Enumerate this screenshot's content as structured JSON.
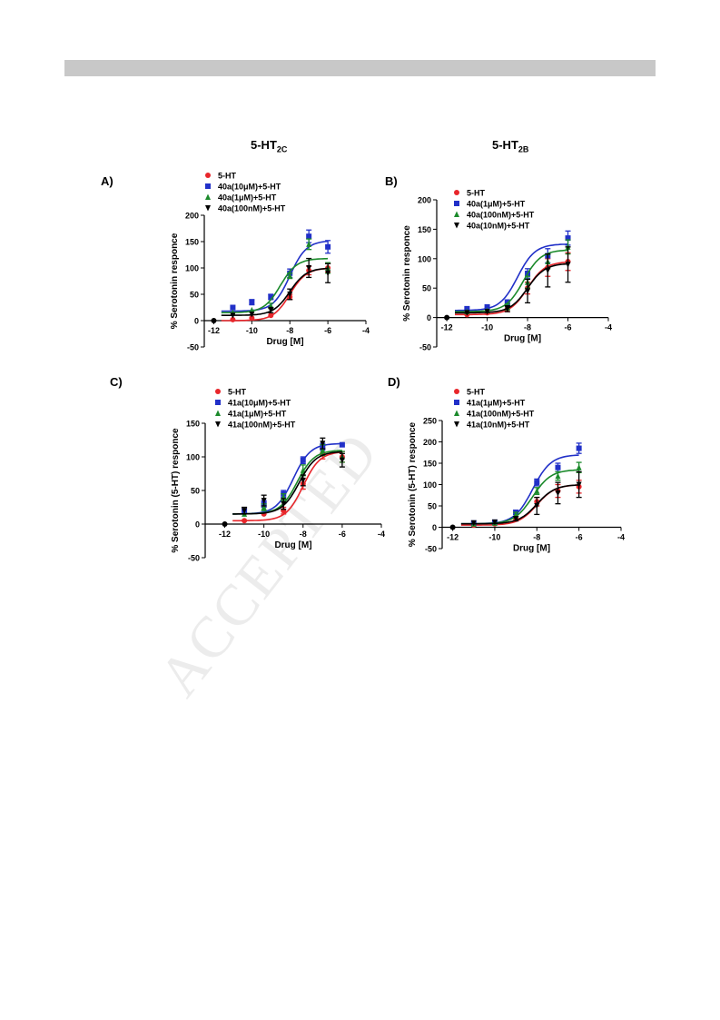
{
  "header": {
    "col_left": {
      "main": "5-HT",
      "sub": "2C"
    },
    "col_right": {
      "main": "5-HT",
      "sub": "2B"
    }
  },
  "watermark": "ACCEPTED",
  "colors": {
    "red": "#e8262b",
    "blue": "#2130c8",
    "green": "#1b8a2b",
    "black": "#000000"
  },
  "chart_data": [
    {
      "type": "scatter",
      "letter": "A)",
      "xlabel": "Drug [M]",
      "ylabel": "% Serotonin responce",
      "xlim": [
        -12.5,
        -4
      ],
      "ylim": [
        -50,
        200
      ],
      "xticks": [
        -12,
        -10,
        -8,
        -6,
        -4
      ],
      "yticks": [
        -50,
        0,
        50,
        100,
        150,
        200
      ],
      "x": [
        -11,
        -10,
        -9,
        -8,
        -7,
        -6
      ],
      "series": [
        {
          "name": "5-HT",
          "marker": "circle",
          "color": "red",
          "y": [
            2,
            5,
            10,
            45,
            95,
            100
          ],
          "err": [
            0,
            0,
            0,
            5,
            8,
            8
          ],
          "fit": {
            "bottom": 0,
            "top": 100,
            "logec50": -8.0
          }
        },
        {
          "name": "40a(10μM)+5-HT",
          "marker": "square",
          "color": "blue",
          "y": [
            25,
            35,
            45,
            90,
            160,
            140
          ],
          "err": [
            0,
            5,
            5,
            8,
            12,
            12
          ],
          "fit": {
            "bottom": 18,
            "top": 152,
            "logec50": -8.0
          }
        },
        {
          "name": "40a(1μM)+5-HT",
          "marker": "triangle-up",
          "color": "green",
          "y": [
            15,
            20,
            28,
            85,
            145,
            100
          ],
          "err": [
            0,
            0,
            5,
            5,
            10,
            10
          ],
          "fit": {
            "bottom": 15,
            "top": 118,
            "logec50": -8.5
          }
        },
        {
          "name": "40a(100nM)+5-HT",
          "marker": "triangle-down",
          "color": "black",
          "y": [
            10,
            12,
            20,
            50,
            100,
            90
          ],
          "err": [
            0,
            0,
            5,
            10,
            18,
            18
          ],
          "fit": {
            "bottom": 10,
            "top": 100,
            "logec50": -8.0
          }
        }
      ],
      "first_point": {
        "x": -12,
        "y": 0
      }
    },
    {
      "type": "scatter",
      "letter": "B)",
      "xlabel": "Drug [M]",
      "ylabel": "% Serotonin responce",
      "xlim": [
        -12.5,
        -4
      ],
      "ylim": [
        -50,
        200
      ],
      "xticks": [
        -12,
        -10,
        -8,
        -6,
        -4
      ],
      "yticks": [
        -50,
        0,
        50,
        100,
        150,
        200
      ],
      "x": [
        -11,
        -10,
        -9,
        -8,
        -7,
        -6
      ],
      "series": [
        {
          "name": "5-HT",
          "marker": "circle",
          "color": "red",
          "y": [
            5,
            8,
            15,
            50,
            85,
            95
          ],
          "err": [
            0,
            0,
            5,
            10,
            15,
            15
          ],
          "fit": {
            "bottom": 5,
            "top": 95,
            "logec50": -8.0
          }
        },
        {
          "name": "40a(1μM)+5-HT",
          "marker": "square",
          "color": "blue",
          "y": [
            15,
            18,
            25,
            75,
            105,
            135
          ],
          "err": [
            0,
            0,
            5,
            8,
            12,
            12
          ],
          "fit": {
            "bottom": 12,
            "top": 125,
            "logec50": -8.5
          }
        },
        {
          "name": "40a(100nM)+5-HT",
          "marker": "triangle-up",
          "color": "green",
          "y": [
            10,
            12,
            18,
            60,
            95,
            120
          ],
          "err": [
            0,
            0,
            5,
            10,
            12,
            12
          ],
          "fit": {
            "bottom": 10,
            "top": 115,
            "logec50": -8.2
          }
        },
        {
          "name": "40a(10nM)+5-HT",
          "marker": "triangle-down",
          "color": "black",
          "y": [
            8,
            10,
            15,
            45,
            80,
            90
          ],
          "err": [
            0,
            0,
            5,
            20,
            28,
            30
          ],
          "fit": {
            "bottom": 8,
            "top": 92,
            "logec50": -8.0
          }
        }
      ],
      "first_point": {
        "x": -12,
        "y": 0
      }
    },
    {
      "type": "scatter",
      "letter": "C)",
      "xlabel": "Drug [M]",
      "ylabel": "% Serotonin (5-HT) responce",
      "xlim": [
        -13,
        -4
      ],
      "ylim": [
        -50,
        150
      ],
      "xticks": [
        -12,
        -10,
        -8,
        -6,
        -4
      ],
      "yticks": [
        -50,
        0,
        50,
        100,
        150
      ],
      "x": [
        -11,
        -10,
        -9,
        -8,
        -7,
        -6
      ],
      "series": [
        {
          "name": "5-HT",
          "marker": "circle",
          "color": "red",
          "y": [
            5,
            15,
            20,
            60,
            105,
            100
          ],
          "err": [
            0,
            0,
            5,
            8,
            8,
            8
          ],
          "fit": {
            "bottom": 5,
            "top": 108,
            "logec50": -8.0
          }
        },
        {
          "name": "41a(10μM)+5-HT",
          "marker": "square",
          "color": "blue",
          "y": [
            20,
            30,
            45,
            95,
            115,
            118
          ],
          "err": [
            0,
            5,
            5,
            5,
            5,
            0
          ],
          "fit": {
            "bottom": 15,
            "top": 120,
            "logec50": -8.5
          }
        },
        {
          "name": "41a(1μM)+5-HT",
          "marker": "triangle-up",
          "color": "green",
          "y": [
            15,
            25,
            40,
            80,
            110,
            100
          ],
          "err": [
            0,
            5,
            5,
            8,
            8,
            8
          ],
          "fit": {
            "bottom": 15,
            "top": 110,
            "logec50": -8.3
          }
        },
        {
          "name": "41a(100nM)+5-HT",
          "marker": "triangle-down",
          "color": "black",
          "y": [
            20,
            35,
            30,
            65,
            120,
            95
          ],
          "err": [
            5,
            8,
            8,
            8,
            8,
            10
          ],
          "fit": {
            "bottom": 15,
            "top": 108,
            "logec50": -8.2
          }
        }
      ],
      "first_point": {
        "x": -12,
        "y": 0
      }
    },
    {
      "type": "scatter",
      "letter": "D)",
      "xlabel": "Drug [M]",
      "ylabel": "% Serotonin (5-HT) responce",
      "xlim": [
        -12.5,
        -4
      ],
      "ylim": [
        -50,
        250
      ],
      "xticks": [
        -12,
        -10,
        -8,
        -6,
        -4
      ],
      "yticks": [
        -50,
        0,
        50,
        100,
        150,
        200,
        250
      ],
      "x": [
        -11,
        -10,
        -9,
        -8,
        -7,
        -6
      ],
      "series": [
        {
          "name": "5-HT",
          "marker": "circle",
          "color": "red",
          "y": [
            5,
            8,
            20,
            60,
            85,
            95
          ],
          "err": [
            0,
            0,
            5,
            10,
            15,
            15
          ],
          "fit": {
            "bottom": 5,
            "top": 100,
            "logec50": -8.0
          }
        },
        {
          "name": "41a(1μM)+5-HT",
          "marker": "square",
          "color": "blue",
          "y": [
            10,
            12,
            35,
            105,
            140,
            185
          ],
          "err": [
            0,
            0,
            5,
            8,
            10,
            12
          ],
          "fit": {
            "bottom": 8,
            "top": 170,
            "logec50": -8.2
          }
        },
        {
          "name": "41a(100nM)+5-HT",
          "marker": "triangle-up",
          "color": "green",
          "y": [
            8,
            10,
            30,
            85,
            120,
            140
          ],
          "err": [
            0,
            0,
            5,
            8,
            10,
            12
          ],
          "fit": {
            "bottom": 8,
            "top": 135,
            "logec50": -8.2
          }
        },
        {
          "name": "41a(10nM)+5-HT",
          "marker": "triangle-down",
          "color": "black",
          "y": [
            10,
            12,
            20,
            50,
            80,
            100
          ],
          "err": [
            0,
            0,
            5,
            20,
            25,
            30
          ],
          "fit": {
            "bottom": 8,
            "top": 100,
            "logec50": -8.0
          }
        }
      ],
      "first_point": {
        "x": -12,
        "y": 0
      }
    }
  ]
}
